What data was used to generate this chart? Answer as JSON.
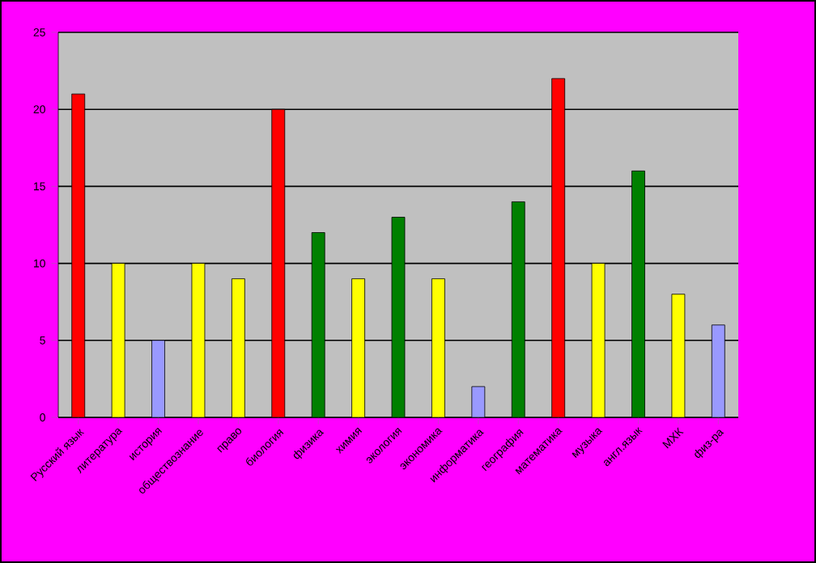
{
  "chart_data": {
    "type": "bar",
    "categories": [
      "Русский язык",
      "литература",
      "история",
      "обществознание",
      "право",
      "биология",
      "физика",
      "химия",
      "экология",
      "экономика",
      "информатика",
      "география",
      "математика",
      "музыка",
      "англ.язык",
      "МХК",
      "физ-ра"
    ],
    "values": [
      21,
      10,
      5,
      10,
      9,
      20,
      12,
      9,
      13,
      9,
      2,
      14,
      22,
      10,
      16,
      8,
      6
    ],
    "colors": [
      "#ff0000",
      "#ffff00",
      "#9999ff",
      "#ffff00",
      "#ffff00",
      "#ff0000",
      "#008000",
      "#ffff00",
      "#008000",
      "#ffff00",
      "#9999ff",
      "#008000",
      "#ff0000",
      "#ffff00",
      "#008000",
      "#ffff00",
      "#9999ff"
    ],
    "ylim": [
      0,
      25
    ],
    "yticks": [
      0,
      5,
      10,
      15,
      20,
      25
    ],
    "grid": "y"
  }
}
